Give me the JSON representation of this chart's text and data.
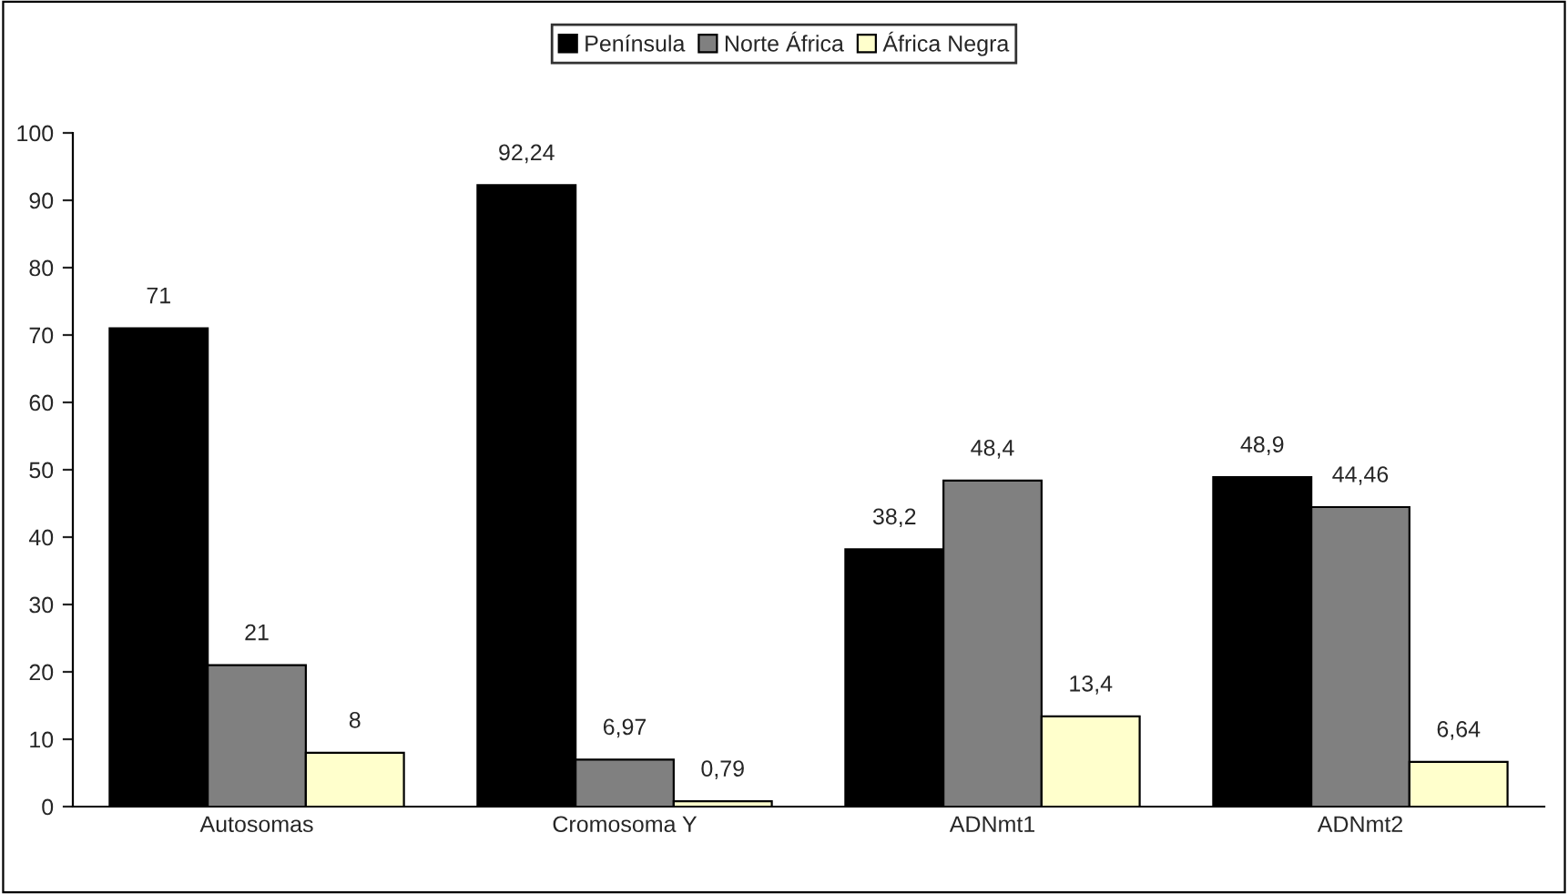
{
  "chart_data": {
    "type": "bar",
    "categories": [
      "Autosomas",
      "Cromosoma Y",
      "ADNmt1",
      "ADNmt2"
    ],
    "series": [
      {
        "name": "Península",
        "color": "#000000",
        "values": [
          71,
          92.24,
          38.2,
          48.9
        ],
        "value_labels": [
          "71",
          "92,24",
          "38,2",
          "48,9"
        ]
      },
      {
        "name": "Norte África",
        "color": "#808080",
        "values": [
          21,
          6.97,
          48.4,
          44.46
        ],
        "value_labels": [
          "21",
          "6,97",
          "48,4",
          "44,46"
        ]
      },
      {
        "name": "África Negra",
        "color": "#ffffcc",
        "values": [
          8,
          0.79,
          13.4,
          6.64
        ],
        "value_labels": [
          "8",
          "0,79",
          "13,4",
          "6,64"
        ]
      }
    ],
    "ylim": [
      0,
      100
    ],
    "yticks": [
      0,
      10,
      20,
      30,
      40,
      50,
      60,
      70,
      80,
      90,
      100
    ],
    "grid": false,
    "legend": "top"
  }
}
